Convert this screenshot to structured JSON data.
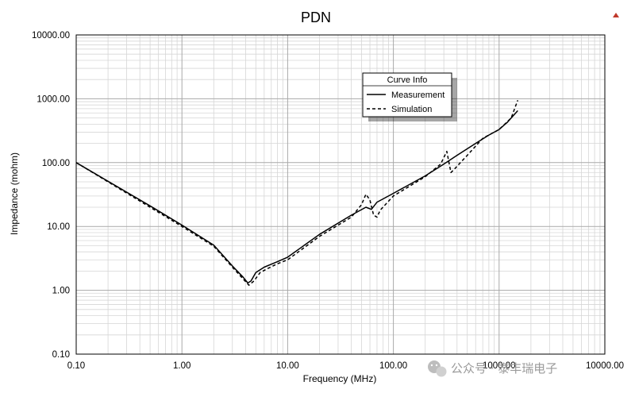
{
  "chart_data": {
    "type": "line",
    "title": "PDN",
    "xlabel": "Frequency (MHz)",
    "ylabel": "Impedance (mohm)",
    "xscale": "log",
    "yscale": "log",
    "xlim": [
      0.1,
      10000
    ],
    "ylim": [
      0.1,
      10000
    ],
    "xticks": [
      "0.10",
      "1.00",
      "10.00",
      "100.00",
      "1000.00",
      "10000.00"
    ],
    "yticks": [
      "0.10",
      "1.00",
      "10.00",
      "100.00",
      "1000.00",
      "10000.00"
    ],
    "grid": true,
    "legend": {
      "title": "Curve Info",
      "position": "top-right"
    },
    "series": [
      {
        "name": "Measurement",
        "style": "solid",
        "color": "#000000",
        "x": [
          0.1,
          0.2,
          0.5,
          1.0,
          2.0,
          3.0,
          3.8,
          4.2,
          4.5,
          5.0,
          6.0,
          8.0,
          10,
          20,
          40,
          55,
          62,
          70,
          100,
          200,
          300,
          400,
          600,
          800,
          1000,
          1200,
          1500
        ],
        "y": [
          100,
          51,
          21,
          10.5,
          5.1,
          2.4,
          1.6,
          1.3,
          1.4,
          1.9,
          2.3,
          2.8,
          3.3,
          7.5,
          15,
          20,
          18.5,
          24,
          33,
          62,
          95,
          130,
          200,
          270,
          330,
          430,
          650
        ]
      },
      {
        "name": "Simulation",
        "style": "dashed",
        "color": "#000000",
        "x": [
          0.1,
          0.2,
          0.5,
          1.0,
          2.0,
          3.0,
          3.8,
          4.3,
          4.8,
          5.5,
          6.5,
          8.0,
          10,
          20,
          40,
          50,
          55,
          60,
          65,
          70,
          75,
          100,
          200,
          280,
          320,
          350,
          380,
          500,
          700,
          1000,
          1300,
          1500
        ],
        "y": [
          100,
          50,
          20,
          10,
          4.9,
          2.3,
          1.5,
          1.2,
          1.4,
          1.9,
          2.2,
          2.6,
          3.0,
          7.0,
          14,
          22,
          32,
          26,
          15,
          14,
          18,
          30,
          60,
          95,
          150,
          70,
          80,
          130,
          240,
          330,
          500,
          950
        ]
      }
    ]
  },
  "watermark": {
    "text": "公众号 · 泰丰瑞电子"
  }
}
